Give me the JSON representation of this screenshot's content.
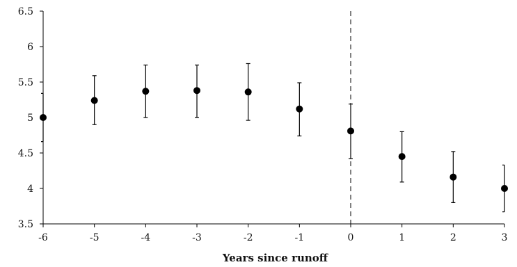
{
  "chart_data": {
    "type": "scatter",
    "title": "",
    "xlabel": "Years since runoff",
    "ylabel": "",
    "xlim": [
      -6,
      3
    ],
    "ylim": [
      3.5,
      6.5
    ],
    "x_ticks": [
      "-6",
      "-5",
      "-4",
      "-3",
      "-2",
      "-1",
      "0",
      "1",
      "2",
      "3"
    ],
    "y_ticks": [
      "3.5",
      "4",
      "4.5",
      "5",
      "5.5",
      "6",
      "6.5"
    ],
    "grid": false,
    "legend": "none",
    "reference_line": {
      "x": 0,
      "style": "dashed"
    },
    "series": [
      {
        "points": [
          {
            "x": -6,
            "y": 5.0,
            "lower": 4.66,
            "upper": 5.34
          },
          {
            "x": -5,
            "y": 5.24,
            "lower": 4.9,
            "upper": 5.59
          },
          {
            "x": -4,
            "y": 5.37,
            "lower": 5.0,
            "upper": 5.74
          },
          {
            "x": -3,
            "y": 5.38,
            "lower": 5.0,
            "upper": 5.74
          },
          {
            "x": -2,
            "y": 5.36,
            "lower": 4.96,
            "upper": 5.76
          },
          {
            "x": -1,
            "y": 5.12,
            "lower": 4.74,
            "upper": 5.49
          },
          {
            "x": 0,
            "y": 4.81,
            "lower": 4.42,
            "upper": 5.19
          },
          {
            "x": 1,
            "y": 4.45,
            "lower": 4.09,
            "upper": 4.8
          },
          {
            "x": 2,
            "y": 4.16,
            "lower": 3.8,
            "upper": 4.52
          },
          {
            "x": 3,
            "y": 4.0,
            "lower": 3.67,
            "upper": 4.33
          }
        ]
      }
    ],
    "colors": {
      "marker": "#000000",
      "axis": "#000000"
    }
  }
}
